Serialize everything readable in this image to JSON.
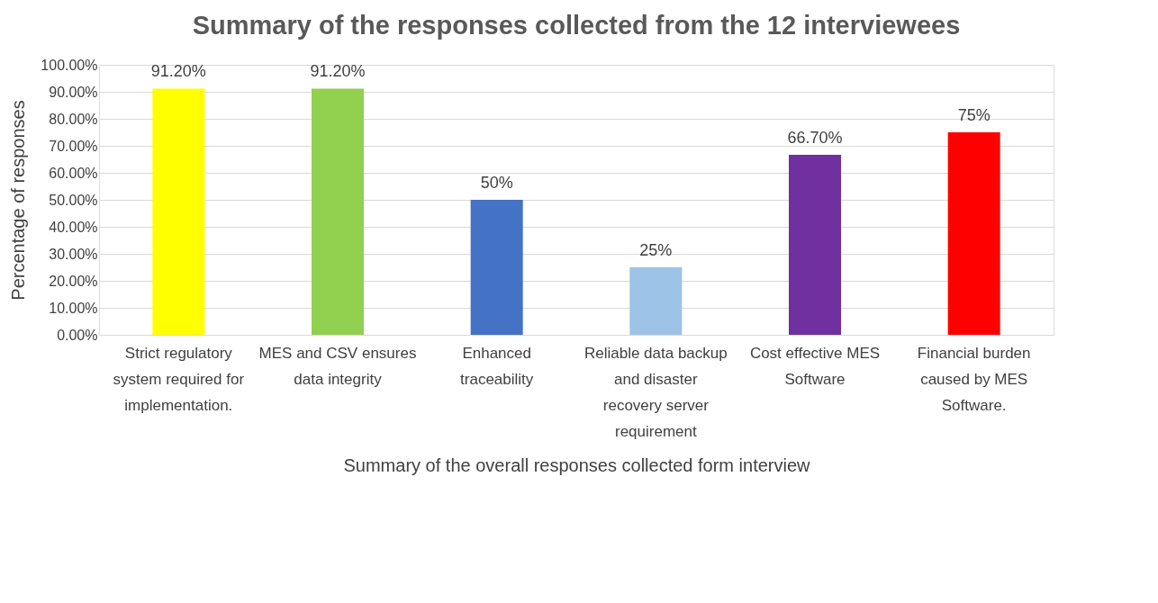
{
  "chart_data": {
    "type": "bar",
    "title": "Summary of the responses collected from the 12 interviewees",
    "xlabel": "Summary of the overall responses collected form interview",
    "ylabel": "Percentage of responses",
    "categories": [
      "Strict regulatory system required for implementation.",
      "MES and CSV ensures data integrity",
      "Enhanced traceability",
      "Reliable data backup and disaster recovery server requirement",
      "Cost effective MES Software",
      "Financial burden caused by MES Software."
    ],
    "values": [
      91.2,
      91.2,
      50,
      25,
      66.7,
      75
    ],
    "colors": [
      "#ffff00",
      "#92d050",
      "#4472c4",
      "#9dc3e6",
      "#7030a0",
      "#ff0000"
    ],
    "value_labels": [
      "91.20%",
      "91.20%",
      "50%",
      "25%",
      "66.70%",
      "75%"
    ],
    "ylim": [
      0,
      100
    ],
    "yticks": [
      {
        "value": 0,
        "label": "0.00%"
      },
      {
        "value": 10,
        "label": "10.00%"
      },
      {
        "value": 20,
        "label": "20.00%"
      },
      {
        "value": 30,
        "label": "30.00%"
      },
      {
        "value": 40,
        "label": "40.00%"
      },
      {
        "value": 50,
        "label": "50.00%"
      },
      {
        "value": 60,
        "label": "60.00%"
      },
      {
        "value": 70,
        "label": "70.00%"
      },
      {
        "value": 80,
        "label": "80.00%"
      },
      {
        "value": 90,
        "label": "90.00%"
      },
      {
        "value": 100,
        "label": "100.00%"
      }
    ],
    "grid": "y"
  }
}
